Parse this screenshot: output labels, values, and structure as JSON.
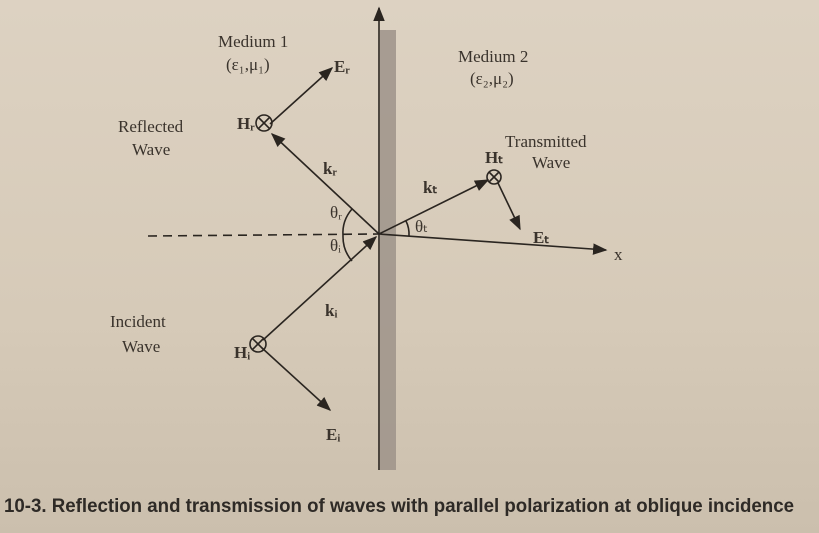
{
  "labels": {
    "medium1": "Medium 1",
    "medium1_params": "(ε₁,μ₁)",
    "medium2": "Medium 2",
    "medium2_params": "(ε₂,μ₂)",
    "reflected_line1": "Reflected",
    "reflected_line2": "Wave",
    "incident_line1": "Incident",
    "incident_line2": "Wave",
    "transmitted_line1": "Transmitted",
    "transmitted_line2": "Wave",
    "E_r": "Eᵣ",
    "H_r": "Hᵣ",
    "k_r": "kᵣ",
    "E_i": "Eᵢ",
    "H_i": "Hᵢ",
    "k_i": "kᵢ",
    "E_t": "Eₜ",
    "H_t": "Hₜ",
    "k_t": "kₜ",
    "theta_r": "θᵣ",
    "theta_i": "θᵢ",
    "theta_t": "θₜ",
    "x_axis": "x"
  },
  "caption": "10-3. Reflection and transmission of waves with parallel polarization at oblique incidence"
}
